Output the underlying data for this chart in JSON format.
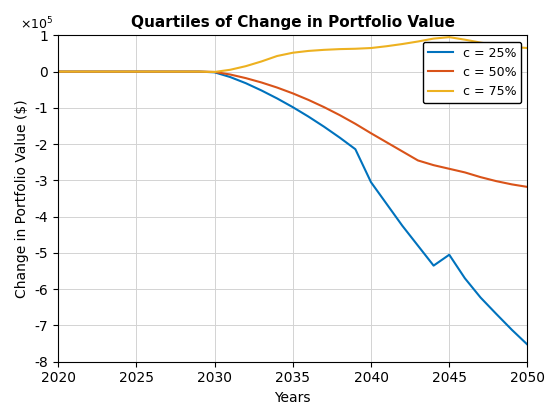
{
  "title": "Quartiles of Change in Portfolio Value",
  "xlabel": "Years",
  "ylabel": "Change in Portfolio Value ($)",
  "xlim": [
    2020,
    2050
  ],
  "ylim": [
    -800000.0,
    100000.0
  ],
  "ytick_scale": 100000.0,
  "grid": true,
  "lines": [
    {
      "label": "c = 25%",
      "color": "#0072BD",
      "linewidth": 1.5,
      "x": [
        2020,
        2021,
        2022,
        2023,
        2024,
        2025,
        2026,
        2027,
        2028,
        2029,
        2030,
        2031,
        2032,
        2033,
        2034,
        2035,
        2036,
        2037,
        2038,
        2039,
        2040,
        2041,
        2042,
        2043,
        2044,
        2045,
        2046,
        2047,
        2048,
        2049,
        2050
      ],
      "y": [
        0,
        0,
        0,
        0,
        0,
        0,
        0,
        0,
        0,
        0,
        -2000,
        -15000,
        -32000,
        -52000,
        -74000,
        -98000,
        -124000,
        -152000,
        -182000,
        -214000,
        -305000,
        -365000,
        -425000,
        -480000,
        -535000,
        -505000,
        -570000,
        -623000,
        -668000,
        -712000,
        -753000
      ]
    },
    {
      "label": "c = 50%",
      "color": "#D95319",
      "linewidth": 1.5,
      "x": [
        2020,
        2021,
        2022,
        2023,
        2024,
        2025,
        2026,
        2027,
        2028,
        2029,
        2030,
        2031,
        2032,
        2033,
        2034,
        2035,
        2036,
        2037,
        2038,
        2039,
        2040,
        2041,
        2042,
        2043,
        2044,
        2045,
        2046,
        2047,
        2048,
        2049,
        2050
      ],
      "y": [
        0,
        0,
        0,
        0,
        0,
        0,
        0,
        0,
        0,
        0,
        -1000,
        -8000,
        -18000,
        -30000,
        -44000,
        -60000,
        -78000,
        -98000,
        -120000,
        -144000,
        -170000,
        -195000,
        -220000,
        -245000,
        -258000,
        -268000,
        -278000,
        -291000,
        -302000,
        -311000,
        -318000
      ]
    },
    {
      "label": "c = 75%",
      "color": "#EDB120",
      "linewidth": 1.5,
      "x": [
        2020,
        2021,
        2022,
        2023,
        2024,
        2025,
        2026,
        2027,
        2028,
        2029,
        2030,
        2031,
        2032,
        2033,
        2034,
        2035,
        2036,
        2037,
        2038,
        2039,
        2040,
        2041,
        2042,
        2043,
        2044,
        2045,
        2046,
        2047,
        2048,
        2049,
        2050
      ],
      "y": [
        0,
        0,
        0,
        0,
        0,
        0,
        0,
        0,
        0,
        0,
        -1000,
        5000,
        15000,
        28000,
        43000,
        52000,
        57000,
        60000,
        62000,
        63000,
        65000,
        70000,
        76000,
        83000,
        91000,
        95000,
        88000,
        80000,
        73000,
        68000,
        65000
      ]
    }
  ],
  "legend_loc": "upper right",
  "xticks": [
    2020,
    2025,
    2030,
    2035,
    2040,
    2045,
    2050
  ],
  "yticks": [
    -8,
    -7,
    -6,
    -5,
    -4,
    -3,
    -2,
    -1,
    0,
    1
  ]
}
